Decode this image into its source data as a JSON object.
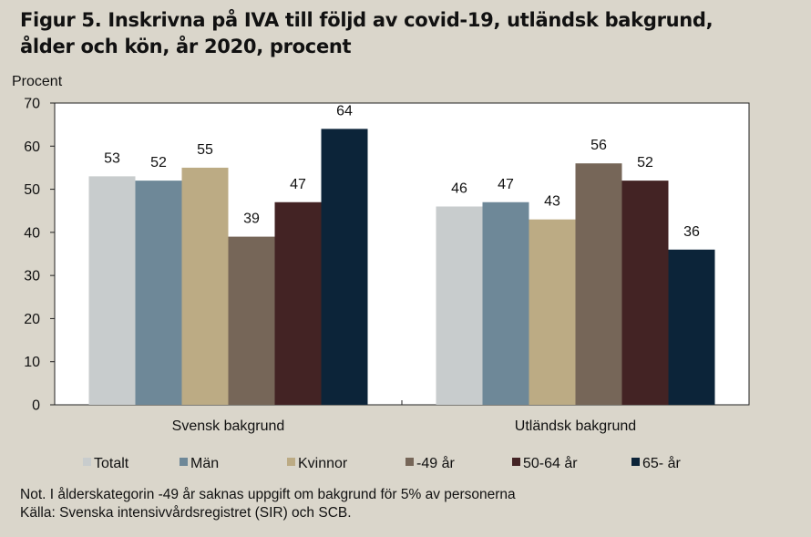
{
  "title_lines": [
    "Figur 5. Inskrivna på IVA till följd av covid-19, utländsk bakgrund,",
    "ålder och kön, år 2020, procent"
  ],
  "notes": [
    "Not. I ålderskategorin -49 år saknas uppgift om bakgrund för 5% av personerna",
    "Källa: Svenska intensivvårdsregistret (SIR) och SCB."
  ],
  "colors": {
    "background": "#dad6cb",
    "plot_area": "#ffffff",
    "series": [
      "#c8cccd",
      "#6e8898",
      "#bcab84",
      "#766658",
      "#432324",
      "#0c2439"
    ]
  },
  "chart_data": {
    "type": "bar",
    "ylabel": "Procent",
    "xlabel": "",
    "ylim": [
      0,
      70
    ],
    "yticks": [
      0,
      10,
      20,
      30,
      40,
      50,
      60,
      70
    ],
    "grid": false,
    "legend_position": "bottom",
    "categories": [
      "Svensk bakgrund",
      "Utländsk bakgrund"
    ],
    "series": [
      {
        "name": "Totalt",
        "values": [
          53,
          46
        ]
      },
      {
        "name": "Män",
        "values": [
          52,
          47
        ]
      },
      {
        "name": "Kvinnor",
        "values": [
          55,
          43
        ]
      },
      {
        "name": "-49 år",
        "values": [
          39,
          56
        ]
      },
      {
        "name": "50-64 år",
        "values": [
          47,
          52
        ]
      },
      {
        "name": "65- år",
        "values": [
          64,
          36
        ]
      }
    ]
  }
}
